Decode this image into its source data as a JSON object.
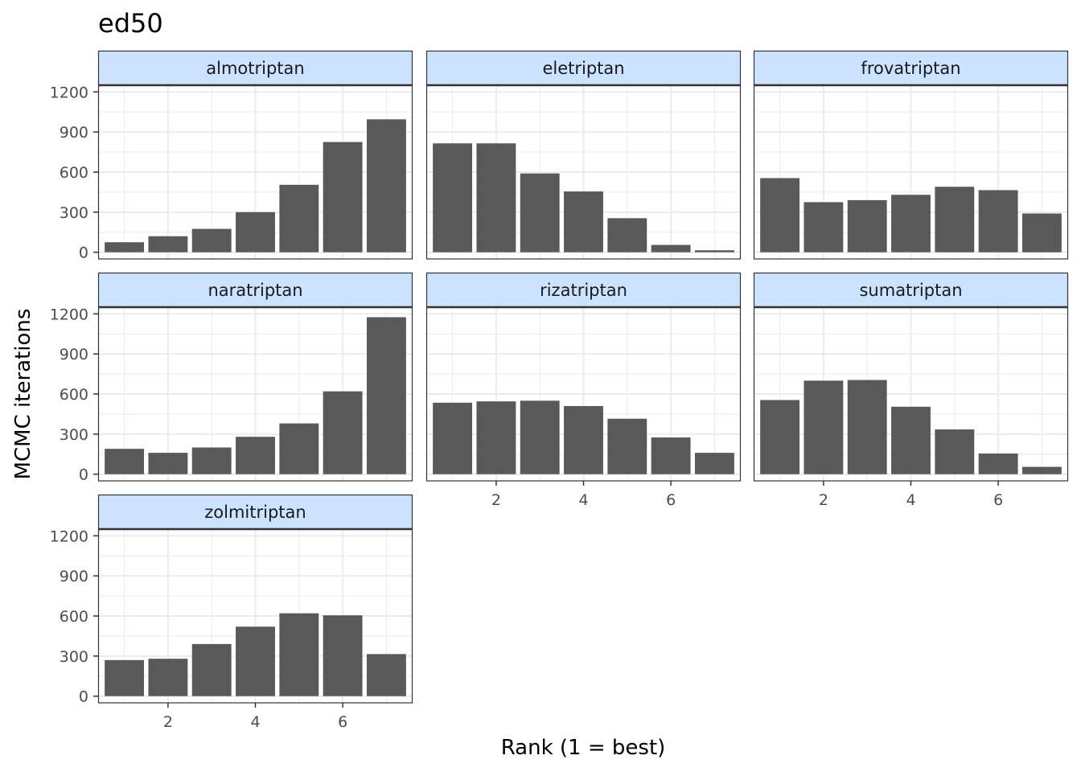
{
  "chart_data": {
    "type": "bar",
    "title": "ed50",
    "xlabel": "Rank (1 = best)",
    "ylabel": "MCMC iterations",
    "x": [
      1,
      2,
      3,
      4,
      5,
      6,
      7
    ],
    "xticks": [
      2,
      4,
      6
    ],
    "xlim": [
      0.4,
      7.6
    ],
    "ylim": [
      -50,
      1250
    ],
    "yticks": [
      0,
      300,
      600,
      900,
      1200
    ],
    "grid": true,
    "colors": {
      "bar": "#595959",
      "strip_fill": "#cce3ff",
      "strip_border": "#333333",
      "grid": "#ebebeb",
      "panel_border": "#333333"
    },
    "panels": [
      {
        "name": "almotriptan",
        "values": [
          75,
          120,
          175,
          300,
          505,
          825,
          995
        ]
      },
      {
        "name": "eletriptan",
        "values": [
          815,
          815,
          590,
          455,
          255,
          55,
          15
        ]
      },
      {
        "name": "frovatriptan",
        "values": [
          555,
          375,
          390,
          430,
          490,
          465,
          290
        ]
      },
      {
        "name": "naratriptan",
        "values": [
          190,
          160,
          200,
          280,
          380,
          620,
          1175
        ]
      },
      {
        "name": "rizatriptan",
        "values": [
          535,
          545,
          550,
          510,
          415,
          275,
          160
        ]
      },
      {
        "name": "sumatriptan",
        "values": [
          555,
          700,
          705,
          505,
          335,
          155,
          55
        ]
      },
      {
        "name": "zolmitriptan",
        "values": [
          270,
          280,
          390,
          520,
          620,
          605,
          315
        ]
      }
    ]
  }
}
